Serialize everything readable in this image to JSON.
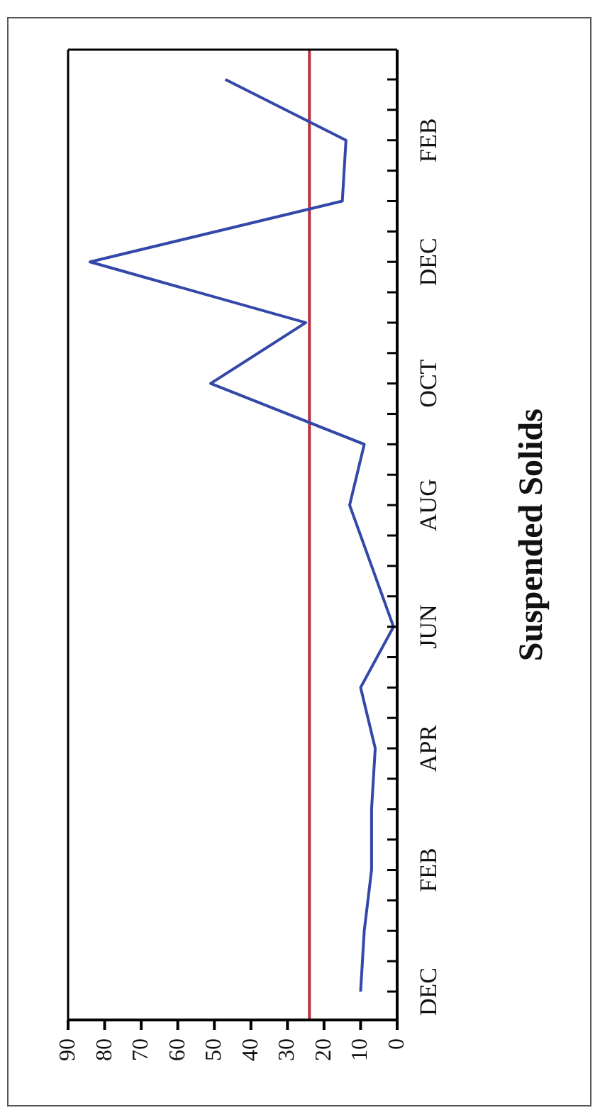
{
  "chart_data": {
    "type": "line",
    "title": "Suspended Solids",
    "orientation": "horizontal",
    "categories": [
      null,
      "FEB",
      null,
      "DEC",
      null,
      "OCT",
      null,
      "AUG",
      null,
      "JUN",
      null,
      "APR",
      null,
      "FEB",
      null,
      "DEC"
    ],
    "series": [
      {
        "color": "#3348a8",
        "values": [
          47,
          14,
          15,
          84,
          25,
          51,
          9,
          13,
          7,
          1,
          10,
          6,
          7,
          7,
          9,
          10
        ]
      }
    ],
    "xlim": [
      90,
      0
    ],
    "xticks": [
      90,
      80,
      70,
      60,
      50,
      40,
      30,
      20,
      10,
      0
    ],
    "ref_lines": [
      {
        "axis": "x",
        "value": 24,
        "color": "#b5323f"
      }
    ],
    "grid": false,
    "legend": false,
    "marker": "none",
    "line_style": "solid"
  }
}
